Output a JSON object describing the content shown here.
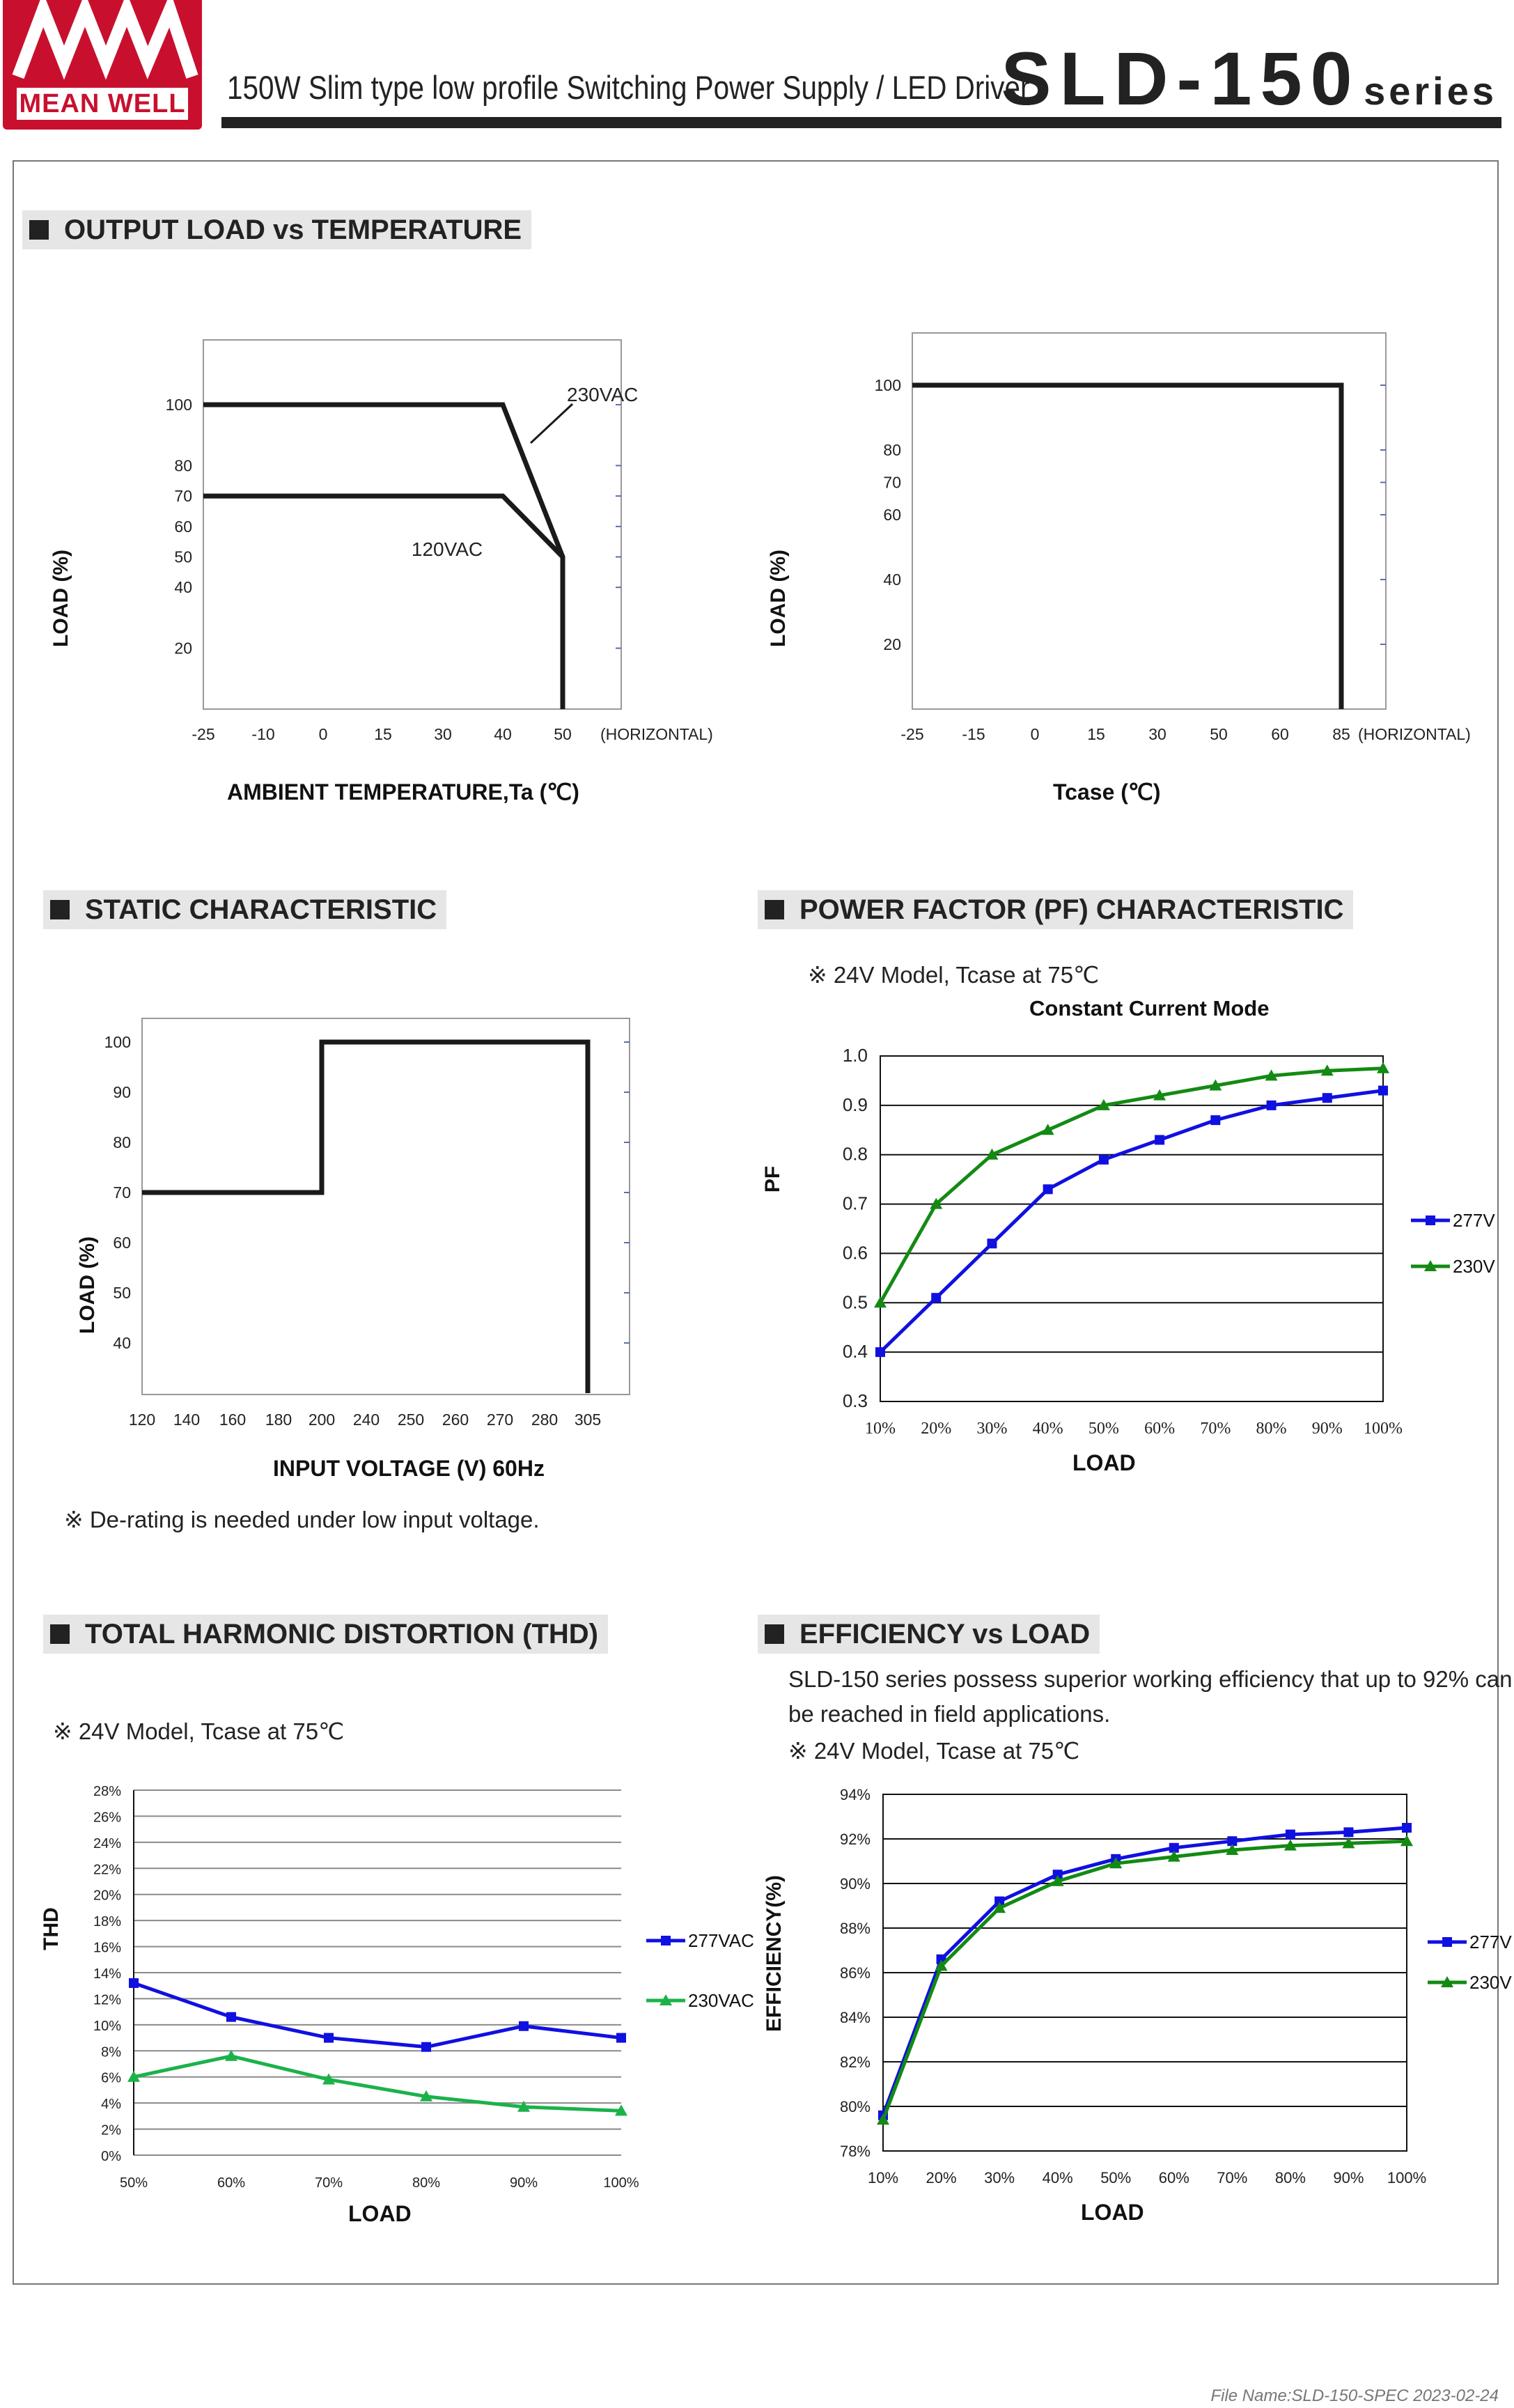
{
  "header": {
    "brand": "MEAN WELL",
    "title": "150W Slim type low profile Switching Power Supply / LED Driver",
    "model": "SLD-150",
    "model_suffix": "series"
  },
  "sections": {
    "output_load": "OUTPUT LOAD vs TEMPERATURE",
    "static": "STATIC CHARACTERISTIC",
    "pf": "POWER FACTOR (PF) CHARACTERISTIC",
    "thd": "TOTAL HARMONIC DISTORTION (THD)",
    "eff": "EFFICIENCY vs LOAD"
  },
  "notes": {
    "static_derating": "※ De-rating is needed under low input voltage.",
    "pf_model": "※ 24V Model, Tcase at 75℃",
    "pf_mode": "Constant Current Mode",
    "thd_model": "※ 24V Model, Tcase at 75℃",
    "eff_text_1": "SLD-150 series possess superior working efficiency that up to 92% can",
    "eff_text_2": "be reached in field applications.",
    "eff_model": "※ 24V Model, Tcase at 75℃"
  },
  "footer": "File Name:SLD-150-SPEC   2023-02-24",
  "colors": {
    "blue": "#1010e0",
    "green": "#138a13",
    "green_thd": "#1bb24a",
    "brand_red": "#c8102e"
  },
  "chart_data": [
    {
      "id": "derating_ambient",
      "type": "line",
      "xlabel": "AMBIENT TEMPERATURE,Ta (℃)",
      "ylabel": "LOAD (%)",
      "x_unit_label": "(HORIZONTAL)",
      "x_ticks": [
        "-25",
        "-10",
        "0",
        "15",
        "30",
        "40",
        "50"
      ],
      "y_ticks": [
        "100",
        "80",
        "70",
        "60",
        "50",
        "40",
        "20"
      ],
      "series": [
        {
          "name": "230VAC",
          "points": [
            [
              "-25",
              100
            ],
            [
              "40",
              100
            ],
            [
              "50",
              50
            ],
            [
              "50",
              0
            ]
          ]
        },
        {
          "name": "120VAC",
          "points": [
            [
              "-25",
              70
            ],
            [
              "40",
              70
            ],
            [
              "50",
              50
            ],
            [
              "50",
              0
            ]
          ]
        }
      ]
    },
    {
      "id": "derating_tcase",
      "type": "line",
      "xlabel": "Tcase (℃)",
      "ylabel": "LOAD (%)",
      "x_unit_label": "(HORIZONTAL)",
      "x_ticks": [
        "-25",
        "-15",
        "0",
        "15",
        "30",
        "50",
        "60",
        "85"
      ],
      "y_ticks": [
        "100",
        "80",
        "70",
        "60",
        "40",
        "20"
      ],
      "series": [
        {
          "points": [
            [
              "-25",
              100
            ],
            [
              "85",
              100
            ],
            [
              "85",
              0
            ]
          ]
        }
      ]
    },
    {
      "id": "static",
      "type": "line",
      "xlabel": "INPUT VOLTAGE (V) 60Hz",
      "ylabel": "LOAD (%)",
      "x_ticks": [
        "120",
        "140",
        "160",
        "180",
        "200",
        "240",
        "250",
        "260",
        "270",
        "280",
        "305"
      ],
      "y_ticks": [
        "100",
        "90",
        "80",
        "70",
        "60",
        "50",
        "40"
      ],
      "series": [
        {
          "points": [
            [
              "120",
              70
            ],
            [
              "200",
              70
            ],
            [
              "200",
              100
            ],
            [
              "305",
              100
            ],
            [
              "305",
              30
            ]
          ]
        }
      ]
    },
    {
      "id": "pf",
      "type": "line",
      "xlabel": "LOAD",
      "ylabel": "PF",
      "categories": [
        "10%",
        "20%",
        "30%",
        "40%",
        "50%",
        "60%",
        "70%",
        "80%",
        "90%",
        "100%"
      ],
      "y_ticks": [
        "1.0",
        "0.9",
        "0.8",
        "0.7",
        "0.6",
        "0.5",
        "0.4",
        "0.3"
      ],
      "ylim": [
        0.3,
        1.0
      ],
      "series": [
        {
          "name": "277V",
          "marker": "square",
          "values": [
            0.4,
            0.51,
            0.62,
            0.73,
            0.79,
            0.83,
            0.87,
            0.9,
            0.915,
            0.93
          ]
        },
        {
          "name": "230V",
          "marker": "triangle",
          "values": [
            0.5,
            0.7,
            0.8,
            0.85,
            0.9,
            0.92,
            0.94,
            0.96,
            0.97,
            0.975
          ]
        }
      ]
    },
    {
      "id": "thd",
      "type": "line",
      "xlabel": "LOAD",
      "ylabel": "THD",
      "categories": [
        "50%",
        "60%",
        "70%",
        "80%",
        "90%",
        "100%"
      ],
      "y_ticks": [
        "28%",
        "26%",
        "24%",
        "22%",
        "20%",
        "18%",
        "16%",
        "14%",
        "12%",
        "10%",
        "8%",
        "6%",
        "4%",
        "2%",
        "0%"
      ],
      "ylim": [
        0,
        28
      ],
      "series": [
        {
          "name": "277VAC",
          "marker": "square",
          "values": [
            13.2,
            10.6,
            9.0,
            8.3,
            9.9,
            9.0
          ]
        },
        {
          "name": "230VAC",
          "marker": "triangle",
          "values": [
            6.0,
            7.6,
            5.8,
            4.5,
            3.7,
            3.4
          ]
        }
      ]
    },
    {
      "id": "efficiency",
      "type": "line",
      "xlabel": "LOAD",
      "ylabel": "EFFICIENCY(%)",
      "categories": [
        "10%",
        "20%",
        "30%",
        "40%",
        "50%",
        "60%",
        "70%",
        "80%",
        "90%",
        "100%"
      ],
      "y_ticks": [
        "94%",
        "92%",
        "90%",
        "88%",
        "86%",
        "84%",
        "82%",
        "80%",
        "78%"
      ],
      "ylim": [
        78,
        94
      ],
      "series": [
        {
          "name": "277V",
          "marker": "square",
          "values": [
            79.6,
            86.6,
            89.2,
            90.4,
            91.1,
            91.6,
            91.9,
            92.2,
            92.3,
            92.5
          ]
        },
        {
          "name": "230V",
          "marker": "triangle",
          "values": [
            79.4,
            86.3,
            88.9,
            90.1,
            90.9,
            91.2,
            91.5,
            91.7,
            91.8,
            91.9
          ]
        }
      ]
    }
  ]
}
